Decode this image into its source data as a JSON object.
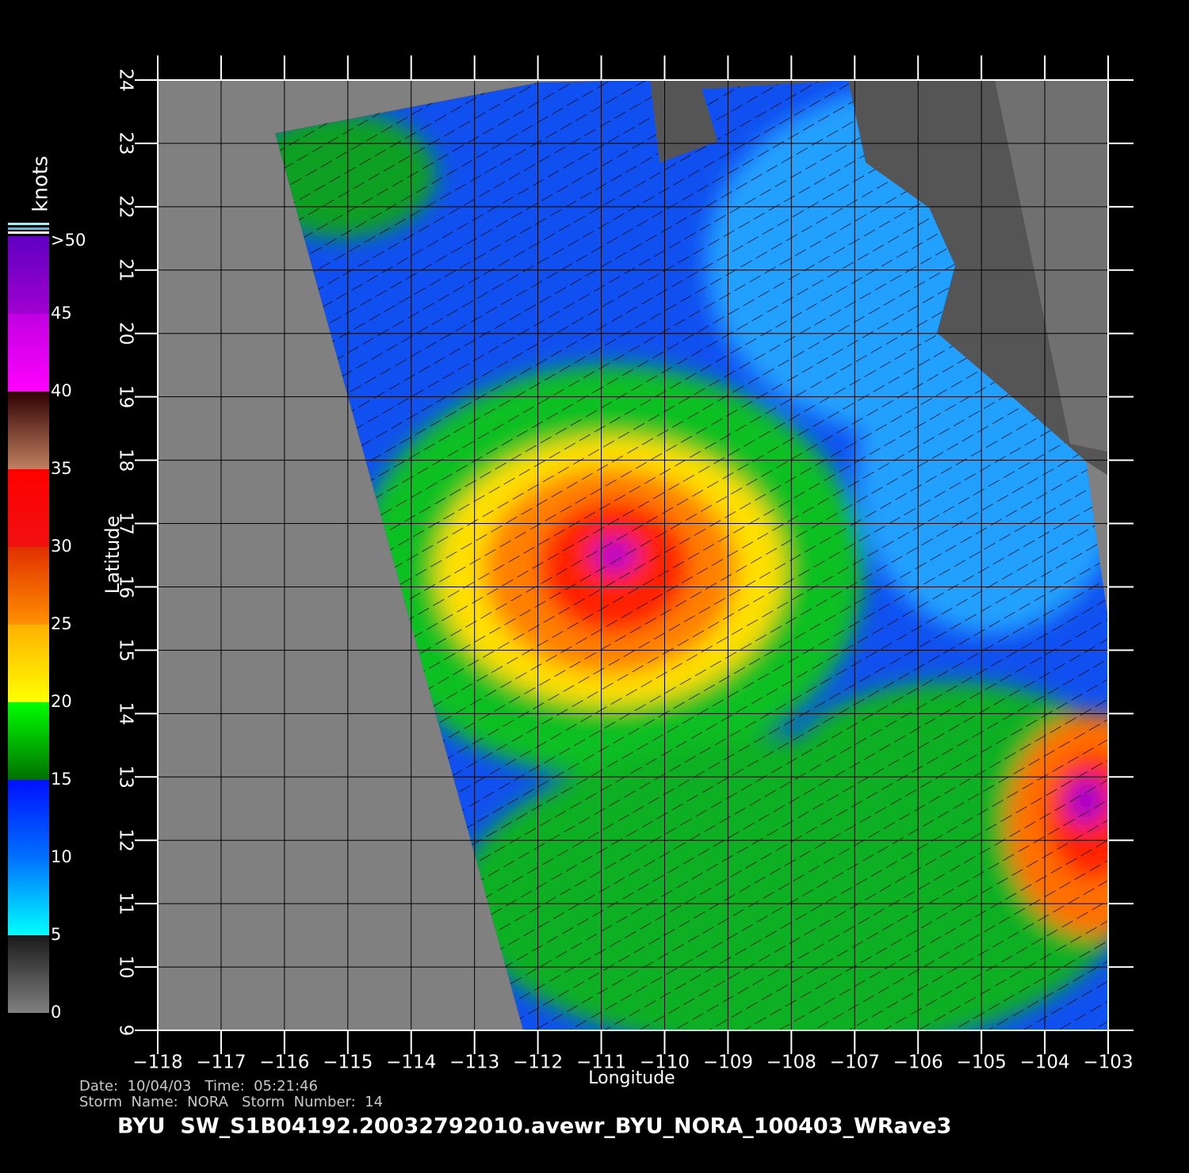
{
  "chart_data": {
    "type": "map",
    "title": "BYU  SW_S1B04192.20032792010.avewr_BYU_NORA_100403_WRave3",
    "notes": [
      "Date:  10/04/03   Time:  05:21:46",
      "Storm  Name:  NORA   Storm  Number:  14"
    ],
    "xlabel": "Longitude",
    "ylabel": "Latitude",
    "xlim": [
      -118,
      -103
    ],
    "ylim": [
      9,
      24
    ],
    "xticks": [
      {
        "value": -118,
        "label": "−118"
      },
      {
        "value": -117,
        "label": "−117"
      },
      {
        "value": -116,
        "label": "−116"
      },
      {
        "value": -115,
        "label": "−115"
      },
      {
        "value": -114,
        "label": "−114"
      },
      {
        "value": -113,
        "label": "−113"
      },
      {
        "value": -112,
        "label": "−112"
      },
      {
        "value": -111,
        "label": "−111"
      },
      {
        "value": -110,
        "label": "−110"
      },
      {
        "value": -109,
        "label": "−109"
      },
      {
        "value": -108,
        "label": "−108"
      },
      {
        "value": -107,
        "label": "−107"
      },
      {
        "value": -106,
        "label": "−106"
      },
      {
        "value": -105,
        "label": "−105"
      },
      {
        "value": -104,
        "label": "−104"
      },
      {
        "value": -103,
        "label": "−103"
      }
    ],
    "yticks": [
      9,
      10,
      11,
      12,
      13,
      14,
      15,
      16,
      17,
      18,
      19,
      20,
      21,
      22,
      23,
      24
    ],
    "grid": true,
    "colorbar": {
      "label": "knots",
      "ticks": [
        0,
        5,
        10,
        15,
        20,
        25,
        30,
        35,
        40,
        45,
        {
          "value": 50,
          "label": ">50"
        }
      ],
      "colors": [
        [
          "#808080",
          "#1a1a1a"
        ],
        [
          "#00ffff",
          "#0070ff"
        ],
        [
          "#0070ff",
          "#0010ff"
        ],
        [
          "#007000",
          "#00ff00"
        ],
        [
          "#ffff00",
          "#ffb000"
        ],
        [
          "#ff9000",
          "#e03000"
        ],
        [
          "#f01010",
          "#ff0000"
        ],
        [
          "#c08060",
          "#300000"
        ],
        [
          "#ff00ff",
          "#c000e0"
        ],
        [
          "#a000d0",
          "#6000c0"
        ]
      ]
    }
  }
}
